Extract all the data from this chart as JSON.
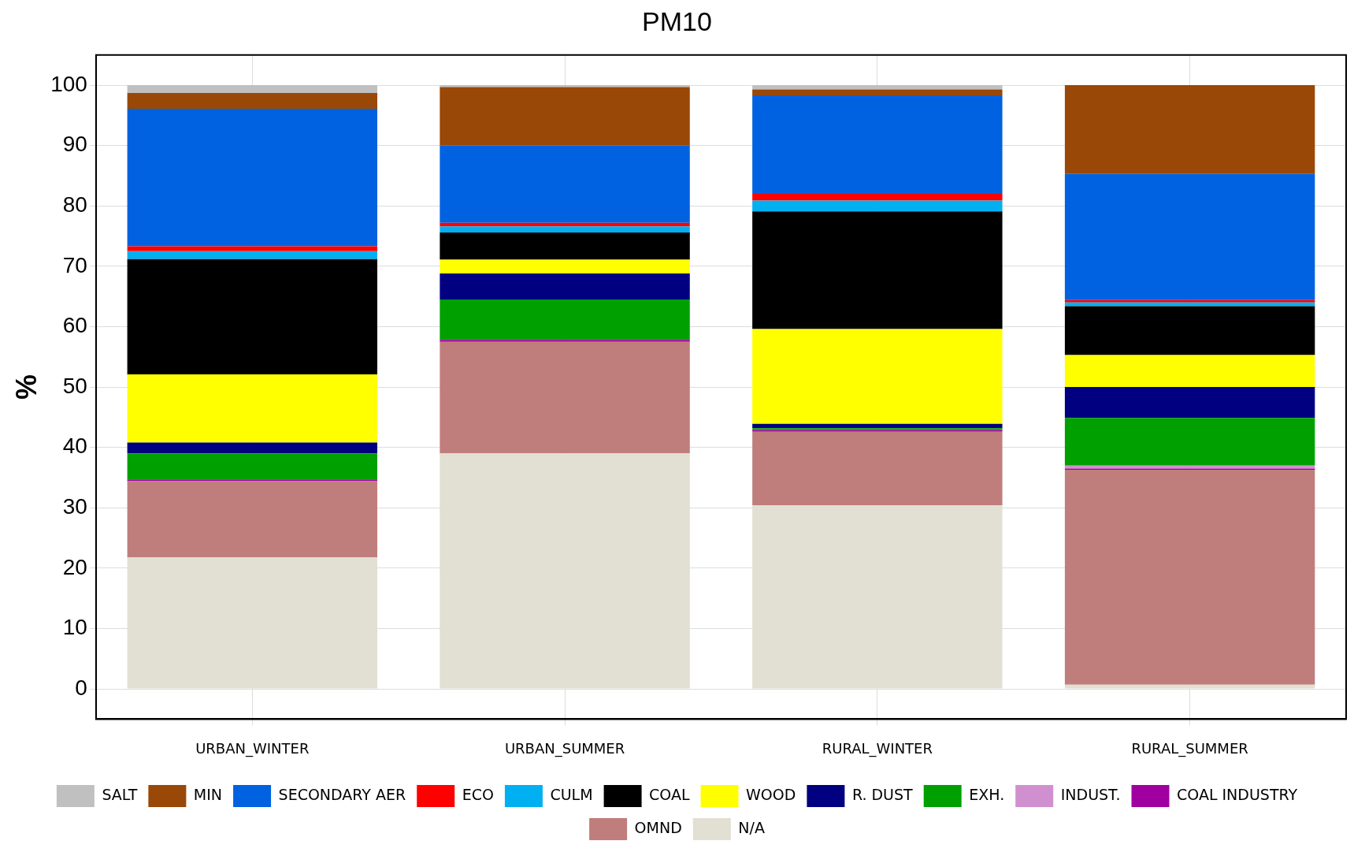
{
  "chart_data": {
    "type": "bar",
    "title": "PM10",
    "ylabel": "%",
    "stacked": true,
    "grid": true,
    "legend": "bottom",
    "ylim": [
      -5,
      105
    ],
    "yticks": [
      0,
      10,
      20,
      30,
      40,
      50,
      60,
      70,
      80,
      90,
      100
    ],
    "categories": [
      "URBAN_WINTER",
      "URBAN_SUMMER",
      "RURAL_WINTER",
      "RURAL_SUMMER"
    ],
    "series": [
      {
        "name": "N/A",
        "color": "#e2dfd3",
        "values": [
          21.8,
          39.0,
          30.4,
          0.7
        ]
      },
      {
        "name": "OMND",
        "color": "#bf7e7c",
        "values": [
          12.6,
          18.5,
          12.2,
          35.6
        ]
      },
      {
        "name": "COAL INDUSTRY",
        "color": "#a000a0",
        "values": [
          0.3,
          0.3,
          0.3,
          0.2
        ]
      },
      {
        "name": "INDUST.",
        "color": "#d090d0",
        "values": [
          0,
          0,
          0,
          0.5
        ]
      },
      {
        "name": "EXH.",
        "color": "#00a000",
        "values": [
          4.3,
          6.7,
          0.3,
          7.9
        ]
      },
      {
        "name": "R. DUST",
        "color": "#000080",
        "values": [
          1.8,
          4.3,
          0.7,
          5.1
        ]
      },
      {
        "name": "WOOD",
        "color": "#ffff00",
        "values": [
          11.3,
          2.3,
          15.7,
          5.3
        ]
      },
      {
        "name": "COAL",
        "color": "#000000",
        "values": [
          19.1,
          4.5,
          19.5,
          8.1
        ]
      },
      {
        "name": "CULM",
        "color": "#00b0f0",
        "values": [
          1.3,
          1.0,
          1.8,
          0.6
        ]
      },
      {
        "name": "ECO",
        "color": "#ff0000",
        "values": [
          0.8,
          0.6,
          1.1,
          0.4
        ]
      },
      {
        "name": "SECONDARY AER",
        "color": "#0062e0",
        "values": [
          22.8,
          12.8,
          16.3,
          20.9
        ]
      },
      {
        "name": "MIN",
        "color": "#994807",
        "values": [
          2.6,
          9.7,
          1.0,
          14.7
        ]
      },
      {
        "name": "SALT",
        "color": "#c0c0c0",
        "values": [
          1.3,
          0.3,
          0.7,
          0
        ]
      }
    ]
  }
}
